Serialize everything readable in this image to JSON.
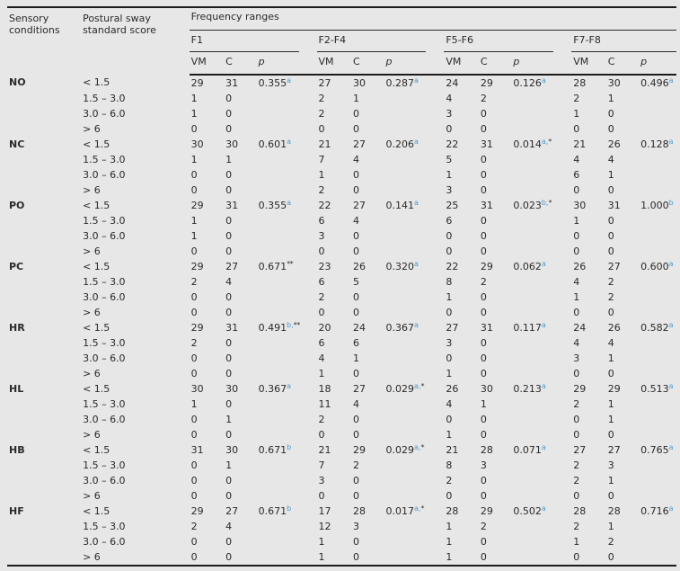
{
  "page": {
    "background": "#e7e7e7",
    "accent_blue": "#4d9ace",
    "rule_color": "#1c1c1c"
  },
  "table": {
    "headers": {
      "col1": "Sensory conditions",
      "col2": "Postural sway standard score",
      "freq": "Frequency ranges"
    },
    "groups": [
      "F1",
      "F2-F4",
      "F5-F6",
      "F7-F8"
    ],
    "subcols": [
      "VM",
      "C",
      "p"
    ],
    "conditions": [
      {
        "name": "NO",
        "p": [
          {
            "v": "0.355",
            "b": "a",
            "s": ""
          },
          {
            "v": "0.287",
            "b": "a",
            "s": ""
          },
          {
            "v": "0.126",
            "b": "a",
            "s": ""
          },
          {
            "v": "0.496",
            "b": "a",
            "s": ""
          }
        ],
        "rows": [
          {
            "score": "< 1.5",
            "vals": [
              "29",
              "31",
              "27",
              "30",
              "24",
              "29",
              "28",
              "30"
            ]
          },
          {
            "score": "1.5 – 3.0",
            "vals": [
              "1",
              "0",
              "2",
              "1",
              "4",
              "2",
              "2",
              "1"
            ]
          },
          {
            "score": "3.0 – 6.0",
            "vals": [
              "1",
              "0",
              "2",
              "0",
              "3",
              "0",
              "1",
              "0"
            ]
          },
          {
            "score": "> 6",
            "vals": [
              "0",
              "0",
              "0",
              "0",
              "0",
              "0",
              "0",
              "0"
            ]
          }
        ]
      },
      {
        "name": "NC",
        "p": [
          {
            "v": "0.601",
            "b": "a",
            "s": ""
          },
          {
            "v": "0.206",
            "b": "a",
            "s": ""
          },
          {
            "v": "0.014",
            "b": "a,",
            "s": "*"
          },
          {
            "v": "0.128",
            "b": "a",
            "s": ""
          }
        ],
        "rows": [
          {
            "score": "< 1.5",
            "vals": [
              "30",
              "30",
              "21",
              "27",
              "22",
              "31",
              "21",
              "26"
            ]
          },
          {
            "score": "1.5 – 3.0",
            "vals": [
              "1",
              "1",
              "7",
              "4",
              "5",
              "0",
              "4",
              "4"
            ]
          },
          {
            "score": "3.0 – 6.0",
            "vals": [
              "0",
              "0",
              "1",
              "0",
              "1",
              "0",
              "6",
              "1"
            ]
          },
          {
            "score": "> 6",
            "vals": [
              "0",
              "0",
              "2",
              "0",
              "3",
              "0",
              "0",
              "0"
            ]
          }
        ]
      },
      {
        "name": "PO",
        "p": [
          {
            "v": "0.355",
            "b": "a",
            "s": ""
          },
          {
            "v": "0.141",
            "b": "a",
            "s": ""
          },
          {
            "v": "0.023",
            "b": "b,",
            "s": "*"
          },
          {
            "v": "1.000",
            "b": "b",
            "s": ""
          }
        ],
        "rows": [
          {
            "score": "< 1.5",
            "vals": [
              "29",
              "31",
              "22",
              "27",
              "25",
              "31",
              "30",
              "31"
            ]
          },
          {
            "score": "1.5 – 3.0",
            "vals": [
              "1",
              "0",
              "6",
              "4",
              "6",
              "0",
              "1",
              "0"
            ]
          },
          {
            "score": "3.0 – 6.0",
            "vals": [
              "1",
              "0",
              "3",
              "0",
              "0",
              "0",
              "0",
              "0"
            ]
          },
          {
            "score": "> 6",
            "vals": [
              "0",
              "0",
              "0",
              "0",
              "0",
              "0",
              "0",
              "0"
            ]
          }
        ]
      },
      {
        "name": "PC",
        "p": [
          {
            "v": "0.671",
            "b": "",
            "s": "**"
          },
          {
            "v": "0.320",
            "b": "a",
            "s": ""
          },
          {
            "v": "0.062",
            "b": "a",
            "s": ""
          },
          {
            "v": "0.600",
            "b": "a",
            "s": ""
          }
        ],
        "rows": [
          {
            "score": "< 1.5",
            "vals": [
              "29",
              "27",
              "23",
              "26",
              "22",
              "29",
              "26",
              "27"
            ]
          },
          {
            "score": "1.5 – 3.0",
            "vals": [
              "2",
              "4",
              "6",
              "5",
              "8",
              "2",
              "4",
              "2"
            ]
          },
          {
            "score": "3.0 – 6.0",
            "vals": [
              "0",
              "0",
              "2",
              "0",
              "1",
              "0",
              "1",
              "2"
            ]
          },
          {
            "score": "> 6",
            "vals": [
              "0",
              "0",
              "0",
              "0",
              "0",
              "0",
              "0",
              "0"
            ]
          }
        ]
      },
      {
        "name": "HR",
        "p": [
          {
            "v": "0.491",
            "b": "b,",
            "s": "**"
          },
          {
            "v": "0.367",
            "b": "a",
            "s": ""
          },
          {
            "v": "0.117",
            "b": "a",
            "s": ""
          },
          {
            "v": "0.582",
            "b": "a",
            "s": ""
          }
        ],
        "rows": [
          {
            "score": "< 1.5",
            "vals": [
              "29",
              "31",
              "20",
              "24",
              "27",
              "31",
              "24",
              "26"
            ]
          },
          {
            "score": "1.5 – 3.0",
            "vals": [
              "2",
              "0",
              "6",
              "6",
              "3",
              "0",
              "4",
              "4"
            ]
          },
          {
            "score": "3.0 – 6.0",
            "vals": [
              "0",
              "0",
              "4",
              "1",
              "0",
              "0",
              "3",
              "1"
            ]
          },
          {
            "score": "> 6",
            "vals": [
              "0",
              "0",
              "1",
              "0",
              "1",
              "0",
              "0",
              "0"
            ]
          }
        ]
      },
      {
        "name": "HL",
        "p": [
          {
            "v": "0.367",
            "b": "a",
            "s": ""
          },
          {
            "v": "0.029",
            "b": "a,",
            "s": "*"
          },
          {
            "v": "0.213",
            "b": "a",
            "s": ""
          },
          {
            "v": "0.513",
            "b": "a",
            "s": ""
          }
        ],
        "rows": [
          {
            "score": "< 1.5",
            "vals": [
              "30",
              "30",
              "18",
              "27",
              "26",
              "30",
              "29",
              "29"
            ]
          },
          {
            "score": "1.5 – 3.0",
            "vals": [
              "1",
              "0",
              "11",
              "4",
              "4",
              "1",
              "2",
              "1"
            ]
          },
          {
            "score": "3.0 – 6.0",
            "vals": [
              "0",
              "1",
              "2",
              "0",
              "0",
              "0",
              "0",
              "1"
            ]
          },
          {
            "score": "> 6",
            "vals": [
              "0",
              "0",
              "0",
              "0",
              "1",
              "0",
              "0",
              "0"
            ]
          }
        ]
      },
      {
        "name": "HB",
        "p": [
          {
            "v": "0.671",
            "b": "b",
            "s": ""
          },
          {
            "v": "0.029",
            "b": "a,",
            "s": "*"
          },
          {
            "v": "0.071",
            "b": "a",
            "s": ""
          },
          {
            "v": "0.765",
            "b": "a",
            "s": ""
          }
        ],
        "rows": [
          {
            "score": "< 1.5",
            "vals": [
              "31",
              "30",
              "21",
              "29",
              "21",
              "28",
              "27",
              "27"
            ]
          },
          {
            "score": "1.5 – 3.0",
            "vals": [
              "0",
              "1",
              "7",
              "2",
              "8",
              "3",
              "2",
              "3"
            ]
          },
          {
            "score": "3.0 – 6.0",
            "vals": [
              "0",
              "0",
              "3",
              "0",
              "2",
              "0",
              "2",
              "1"
            ]
          },
          {
            "score": "> 6",
            "vals": [
              "0",
              "0",
              "0",
              "0",
              "0",
              "0",
              "0",
              "0"
            ]
          }
        ]
      },
      {
        "name": "HF",
        "p": [
          {
            "v": "0.671",
            "b": "b",
            "s": ""
          },
          {
            "v": "0.017",
            "b": "a,",
            "s": "*"
          },
          {
            "v": "0.502",
            "b": "a",
            "s": ""
          },
          {
            "v": "0.716",
            "b": "a",
            "s": ""
          }
        ],
        "rows": [
          {
            "score": "< 1.5",
            "vals": [
              "29",
              "27",
              "17",
              "28",
              "28",
              "29",
              "28",
              "28"
            ]
          },
          {
            "score": "1.5 – 3.0",
            "vals": [
              "2",
              "4",
              "12",
              "3",
              "1",
              "2",
              "2",
              "1"
            ]
          },
          {
            "score": "3.0 – 6.0",
            "vals": [
              "0",
              "0",
              "1",
              "0",
              "1",
              "0",
              "1",
              "2"
            ]
          },
          {
            "score": "> 6",
            "vals": [
              "0",
              "0",
              "1",
              "0",
              "1",
              "0",
              "0",
              "0"
            ]
          }
        ]
      }
    ]
  }
}
